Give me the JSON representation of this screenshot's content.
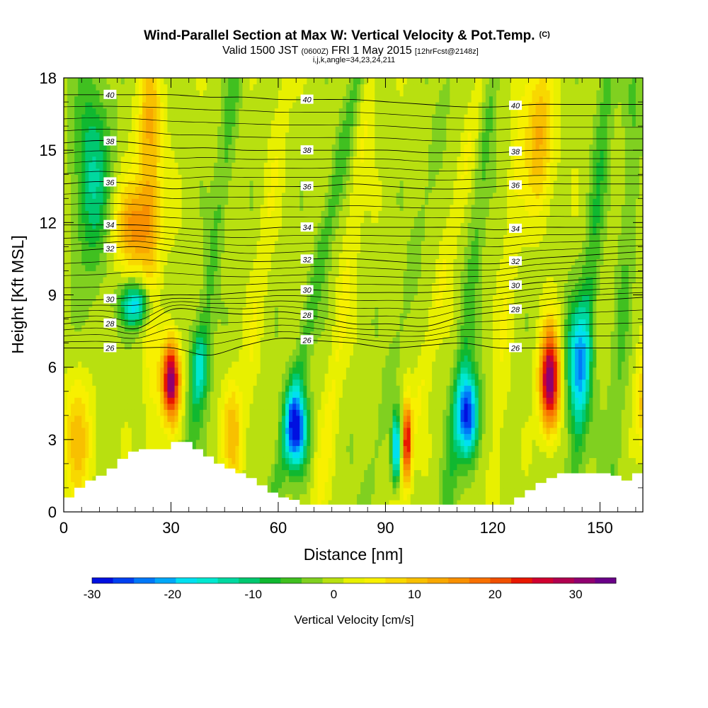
{
  "chart_data": {
    "type": "heatmap",
    "title": "Wind-Parallel Section at Max W: Vertical Velocity & Pot.Temp.",
    "title_mark": "(C)",
    "subtitle_parts": [
      "Valid 1500 JST",
      "(0600Z)",
      "FRI 1 May 2015",
      "[12hrFcst@2148z]"
    ],
    "subtitle2": "i,j,k,angle=34,23,24,211",
    "xlabel": "Distance [nm]",
    "ylabel": "Height [Kft MSL]",
    "xlim": [
      0,
      162
    ],
    "ylim": [
      0,
      18
    ],
    "x_ticks": [
      0,
      30,
      60,
      90,
      120,
      150
    ],
    "y_ticks": [
      0,
      3,
      6,
      9,
      12,
      15,
      18
    ],
    "colorbar": {
      "label": "Vertical Velocity [cm/s]",
      "range": [
        -30,
        35
      ],
      "tick_values": [
        -30,
        -20,
        -10,
        0,
        10,
        20,
        30
      ],
      "tick_labels": [
        "-30",
        "-20",
        "-10",
        "0",
        "10",
        "20",
        "30"
      ],
      "colors": [
        "#0010e0",
        "#0040f0",
        "#0078f8",
        "#00a8f8",
        "#00e0f0",
        "#00e8d0",
        "#00d8a0",
        "#00c870",
        "#10b830",
        "#40c020",
        "#80d020",
        "#b8e010",
        "#e8f000",
        "#f8f000",
        "#f8d800",
        "#f8c000",
        "#f8a800",
        "#f89000",
        "#f87000",
        "#f05000",
        "#e81800",
        "#d00030",
        "#b00050",
        "#900070",
        "#6a0088"
      ]
    },
    "theta_contours": [
      {
        "value": 26,
        "label": "26",
        "z": [
          6.8,
          6.8,
          6.8,
          6.8,
          6.5,
          6.9,
          7.2,
          7.1,
          7.0,
          6.8,
          6.9,
          7.0,
          6.8,
          6.8,
          6.8,
          6.8,
          6.8
        ]
      },
      {
        "value": 28,
        "label": "28",
        "z": [
          7.8,
          7.9,
          7.6,
          8.4,
          8.3,
          8.2,
          8.3,
          8.1,
          7.8,
          7.8,
          7.7,
          8.1,
          8.3,
          8.5,
          8.7,
          8.8,
          8.9
        ]
      },
      {
        "value": 30,
        "label": "30",
        "z": [
          8.8,
          8.8,
          8.9,
          9.0,
          9.0,
          9.1,
          9.2,
          9.2,
          9.1,
          9.1,
          9.1,
          9.2,
          9.3,
          9.5,
          9.6,
          9.7,
          9.7
        ]
      },
      {
        "value": 32,
        "label": "32",
        "z": [
          10.8,
          10.9,
          11.0,
          10.8,
          10.6,
          10.4,
          10.4,
          10.5,
          10.5,
          10.4,
          10.3,
          10.3,
          10.3,
          10.5,
          10.6,
          10.7,
          10.8
        ]
      },
      {
        "value": 34,
        "label": "34",
        "z": [
          11.9,
          11.9,
          11.9,
          11.8,
          11.7,
          11.7,
          11.8,
          11.8,
          11.8,
          11.8,
          11.8,
          11.8,
          11.7,
          11.8,
          11.8,
          11.8,
          11.8
        ]
      },
      {
        "value": 36,
        "label": "36",
        "z": [
          13.6,
          13.7,
          13.6,
          13.4,
          13.5,
          13.5,
          13.5,
          13.5,
          13.6,
          13.5,
          13.4,
          13.4,
          13.5,
          13.6,
          13.6,
          13.6,
          13.6
        ]
      },
      {
        "value": 38,
        "label": "38",
        "z": [
          15.3,
          15.4,
          15.3,
          15.1,
          15.1,
          15.0,
          15.0,
          15.0,
          15.0,
          15.0,
          14.9,
          14.9,
          14.9,
          15.0,
          15.0,
          15.0,
          15.0
        ]
      },
      {
        "value": 40,
        "label": "40",
        "z": [
          17.3,
          17.3,
          17.3,
          17.3,
          17.2,
          17.2,
          17.1,
          17.1,
          17.1,
          17.0,
          16.9,
          16.8,
          16.8,
          16.9,
          16.9,
          16.9,
          16.9
        ]
      }
    ],
    "terrain": {
      "x": [
        0,
        3,
        6,
        9,
        12,
        15,
        18,
        21,
        24,
        27,
        30,
        33,
        36,
        39,
        42,
        45,
        48,
        51,
        54,
        57,
        60,
        63,
        66,
        69,
        72,
        75,
        78,
        81,
        84,
        87,
        90,
        93,
        96,
        99,
        102,
        105,
        108,
        111,
        114,
        117,
        120,
        123,
        126,
        129,
        132,
        135,
        138,
        141,
        144,
        147,
        150,
        153,
        156,
        159,
        162
      ],
      "z": [
        0.6,
        1.0,
        1.3,
        1.5,
        1.8,
        2.2,
        2.5,
        2.6,
        2.6,
        2.6,
        2.9,
        2.9,
        2.6,
        2.3,
        2.0,
        1.8,
        1.6,
        1.4,
        1.1,
        0.8,
        0.6,
        0.5,
        0.3,
        0.3,
        0.3,
        0.3,
        0.3,
        0.3,
        0.3,
        0.3,
        0.3,
        0.3,
        0.3,
        0.3,
        0.3,
        0.3,
        0.3,
        0.3,
        0.3,
        0.3,
        0.3,
        0.3,
        0.6,
        0.9,
        1.2,
        1.4,
        1.6,
        1.6,
        1.6,
        1.6,
        1.6,
        1.5,
        1.3,
        1.6,
        1.6
      ]
    },
    "w_features": [
      {
        "x": 30,
        "z": 5.5,
        "value": 33,
        "sx": 2.5,
        "sz": 1.6
      },
      {
        "x": 136,
        "z": 5.5,
        "value": 33,
        "sx": 2.8,
        "sz": 2.0
      },
      {
        "x": 96,
        "z": 3.0,
        "value": 25,
        "sx": 1.2,
        "sz": 1.6
      },
      {
        "x": 65,
        "z": 3.5,
        "value": -28,
        "sx": 3.0,
        "sz": 1.6
      },
      {
        "x": 113,
        "z": 4.0,
        "value": -28,
        "sx": 3.0,
        "sz": 1.8
      },
      {
        "x": 93,
        "z": 2.6,
        "value": -22,
        "sx": 1.2,
        "sz": 1.4
      },
      {
        "x": 144,
        "z": 6.2,
        "value": -18,
        "sx": 3.5,
        "sz": 2.5
      },
      {
        "x": 20,
        "z": 8.6,
        "value": -18,
        "sx": 4.0,
        "sz": 0.9
      },
      {
        "x": 38,
        "z": 6.0,
        "value": -12,
        "sx": 2.5,
        "sz": 1.6
      },
      {
        "x": 20,
        "z": 11.8,
        "value": 14,
        "sx": 6.0,
        "sz": 1.8
      },
      {
        "x": 24,
        "z": 15.5,
        "value": 8,
        "sx": 4.0,
        "sz": 3.5
      },
      {
        "x": 133,
        "z": 15.5,
        "value": 12,
        "sx": 4.0,
        "sz": 3.0
      },
      {
        "x": 4,
        "z": 3.0,
        "value": 10,
        "sx": 4.0,
        "sz": 2.5
      },
      {
        "x": 162,
        "z": 4.5,
        "value": 10,
        "sx": 2.0,
        "sz": 2.0
      },
      {
        "x": 47,
        "z": 3.5,
        "value": 10,
        "sx": 2.5,
        "sz": 2.0
      },
      {
        "x": 8,
        "z": 14.0,
        "value": -12,
        "sx": 5.0,
        "sz": 4.0
      }
    ],
    "w_bands": [
      {
        "x0": 25,
        "x1": 24,
        "value": 4
      },
      {
        "x0": 33,
        "x1": 48,
        "value": -5
      },
      {
        "x0": 47,
        "x1": 62,
        "value": 3
      },
      {
        "x0": 58,
        "x1": 82,
        "value": -6
      },
      {
        "x0": 71,
        "x1": 86,
        "value": 4
      },
      {
        "x0": 84,
        "x1": 108,
        "value": -3
      },
      {
        "x0": 93,
        "x1": 117,
        "value": 4
      },
      {
        "x0": 107,
        "x1": 120,
        "value": -5
      },
      {
        "x0": 120,
        "x1": 128,
        "value": 3
      },
      {
        "x0": 142,
        "x1": 152,
        "value": -6
      },
      {
        "x0": 153,
        "x1": 160,
        "value": -4
      }
    ]
  }
}
